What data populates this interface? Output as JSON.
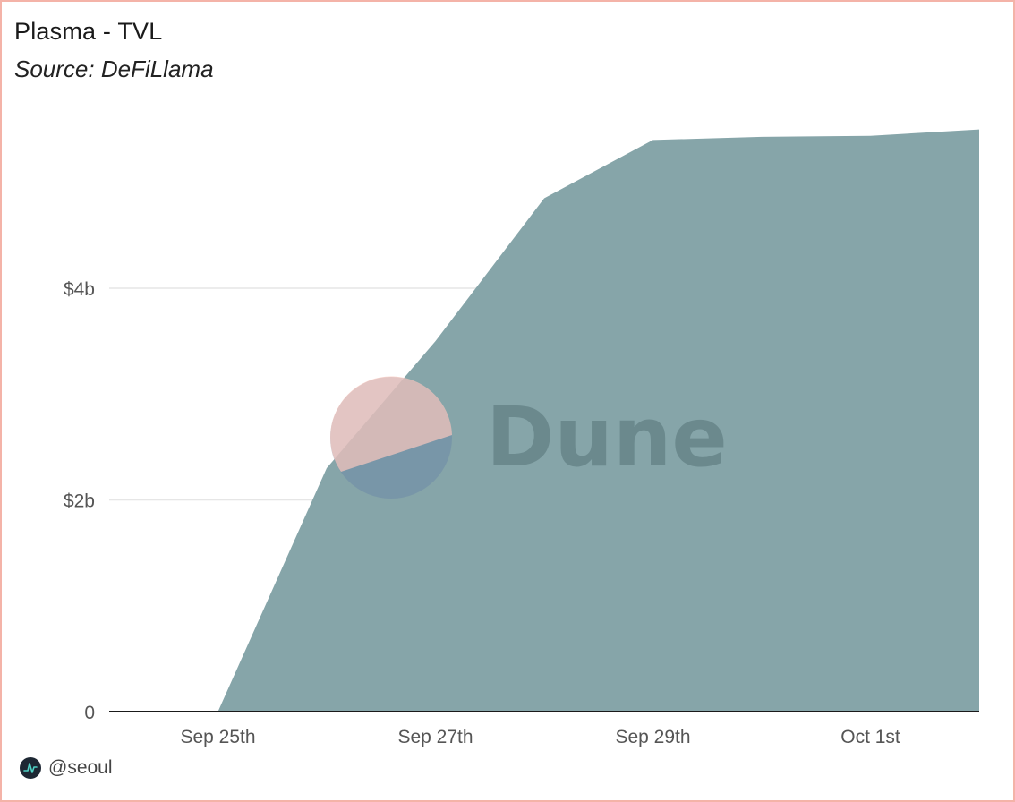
{
  "title": "Plasma - TVL",
  "subtitle": "Source: DeFiLlama",
  "watermark": {
    "text": "Dune"
  },
  "footer": {
    "handle": "@seoul",
    "icon": "dune-logo-icon"
  },
  "colors": {
    "area_fill": "#86a5a9",
    "gridline": "#e6e6e6",
    "axis": "#1a1a1a",
    "border": "#f4b3a8",
    "watermark_circle_top": "#f9c8bd",
    "watermark_circle_bottom": "#6e8ba8"
  },
  "chart_data": {
    "type": "area",
    "title": "Plasma - TVL",
    "xlabel": "",
    "ylabel": "",
    "x": [
      "2025-09-24",
      "2025-09-25",
      "2025-09-26",
      "2025-09-27",
      "2025-09-28",
      "2025-09-29",
      "2025-09-30",
      "2025-10-01",
      "2025-10-02"
    ],
    "series": [
      {
        "values": [
          0,
          0,
          2.3,
          3.5,
          4.85,
          5.4,
          5.43,
          5.44,
          5.5
        ]
      }
    ],
    "x_ticks": [
      {
        "x": "2025-09-25",
        "label": "Sep 25th"
      },
      {
        "x": "2025-09-27",
        "label": "Sep 27th"
      },
      {
        "x": "2025-09-29",
        "label": "Sep 29th"
      },
      {
        "x": "2025-10-01",
        "label": "Oct 1st"
      }
    ],
    "y_ticks": [
      {
        "value": 0,
        "label": "0"
      },
      {
        "value": 2,
        "label": "$2b"
      },
      {
        "value": 4,
        "label": "$4b"
      }
    ],
    "unit": "billion USD",
    "xlim": [
      "2025-09-24",
      "2025-10-02"
    ],
    "ylim": [
      0,
      5.5
    ],
    "grid": true,
    "legend": "none"
  }
}
